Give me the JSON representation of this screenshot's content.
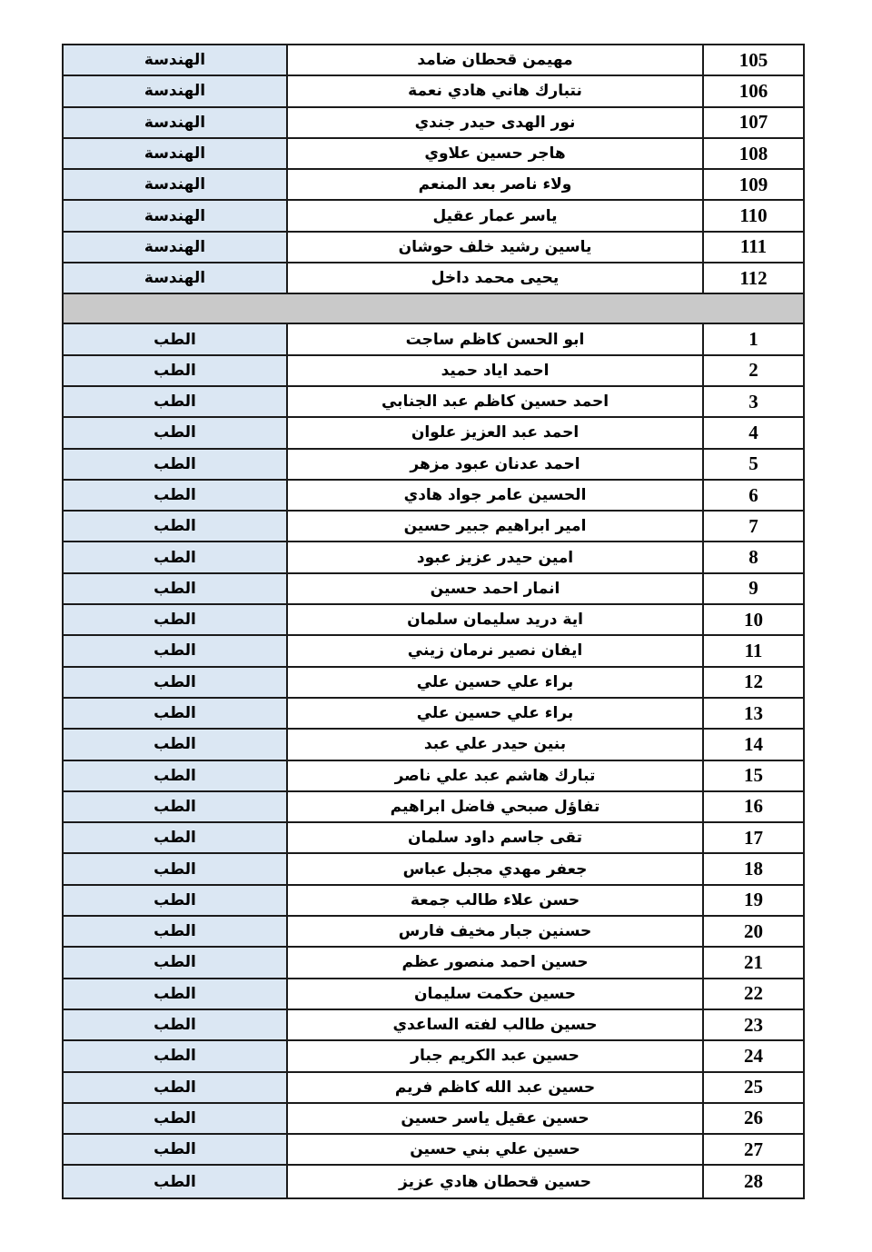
{
  "table": {
    "colors": {
      "department_cell_bg": "#dbe7f3",
      "name_cell_bg": "#ffffff",
      "number_cell_bg": "#ffffff",
      "separator_bg": "#c9c9c9",
      "border": "#1b1b1b",
      "text": "#000000",
      "page_bg": "#ffffff"
    },
    "sections": [
      {
        "id": "engineering",
        "department_label": "الهندسة",
        "rows": [
          {
            "no": "105",
            "name": "مهيمن قحطان ضامد"
          },
          {
            "no": "106",
            "name": "نتبارك هاني هادي نعمة"
          },
          {
            "no": "107",
            "name": "نور الهدى حيدر جندي"
          },
          {
            "no": "108",
            "name": "هاجر حسين علاوي"
          },
          {
            "no": "109",
            "name": "ولاء ناصر بعد المنعم"
          },
          {
            "no": "110",
            "name": "ياسر عمار عقيل"
          },
          {
            "no": "111",
            "name": "ياسين رشيد خلف حوشان"
          },
          {
            "no": "112",
            "name": "يحيى محمد داخل"
          }
        ]
      },
      {
        "id": "medicine",
        "department_label": "الطب",
        "rows": [
          {
            "no": "1",
            "name": "ابو الحسن كاظم ساجت"
          },
          {
            "no": "2",
            "name": "احمد اياد حميد"
          },
          {
            "no": "3",
            "name": "احمد حسين كاظم عبد الجنابي"
          },
          {
            "no": "4",
            "name": "احمد عبد العزيز علوان"
          },
          {
            "no": "5",
            "name": "احمد عدنان عبود مزهر"
          },
          {
            "no": "6",
            "name": "الحسين عامر جواد هادي"
          },
          {
            "no": "7",
            "name": "امير ابراهيم جبير حسين"
          },
          {
            "no": "8",
            "name": "امين حيدر عزيز عبود"
          },
          {
            "no": "9",
            "name": "انمار احمد حسين"
          },
          {
            "no": "10",
            "name": "اية دريد سليمان سلمان"
          },
          {
            "no": "11",
            "name": "ايفان نصير نرمان زيني"
          },
          {
            "no": "12",
            "name": "براء علي حسين علي"
          },
          {
            "no": "13",
            "name": "براء علي حسين علي"
          },
          {
            "no": "14",
            "name": "بنين حيدر علي عبد"
          },
          {
            "no": "15",
            "name": "تبارك هاشم عبد علي ناصر"
          },
          {
            "no": "16",
            "name": "تفاؤل صبحي فاضل ابراهيم"
          },
          {
            "no": "17",
            "name": "تقى جاسم داود سلمان"
          },
          {
            "no": "18",
            "name": "جعفر مهدي مجبل عباس"
          },
          {
            "no": "19",
            "name": "حسن علاء طالب جمعة"
          },
          {
            "no": "20",
            "name": "حسنين جبار مخيف فارس"
          },
          {
            "no": "21",
            "name": "حسين احمد منصور عظم"
          },
          {
            "no": "22",
            "name": "حسين حكمت سليمان"
          },
          {
            "no": "23",
            "name": "حسين طالب لفته الساعدي"
          },
          {
            "no": "24",
            "name": "حسين عبد الكريم جبار"
          },
          {
            "no": "25",
            "name": "حسين عبد الله كاظم فريم"
          },
          {
            "no": "26",
            "name": "حسين عقيل ياسر حسين"
          },
          {
            "no": "27",
            "name": "حسين علي بني حسين"
          },
          {
            "no": "28",
            "name": "حسين قحطان هادي عزيز"
          }
        ]
      }
    ]
  }
}
